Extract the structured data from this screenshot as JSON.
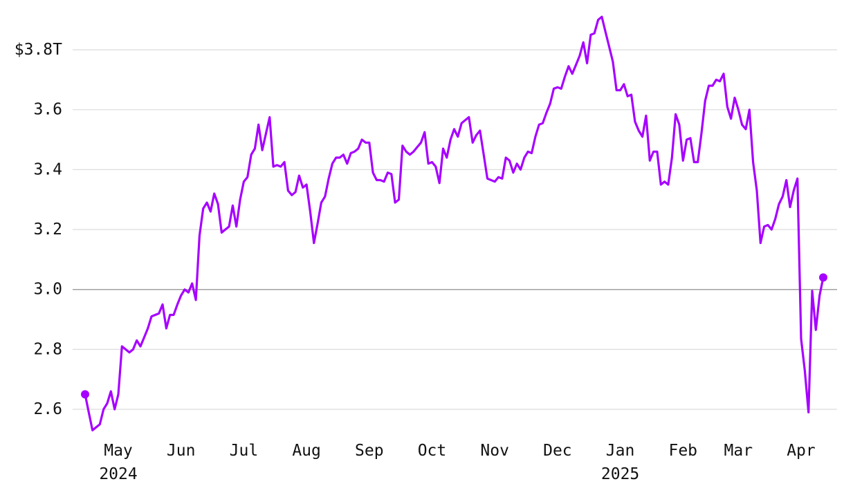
{
  "chart_data": {
    "type": "line",
    "categories": [
      null,
      null,
      null,
      null,
      null,
      null,
      null,
      null,
      null,
      "May\n2024",
      null,
      null,
      null,
      null,
      null,
      null,
      null,
      null,
      null,
      null,
      null,
      null,
      null,
      null,
      null,
      null,
      "Jun",
      null,
      null,
      null,
      null,
      null,
      null,
      null,
      null,
      null,
      null,
      null,
      null,
      null,
      null,
      null,
      null,
      "Jul",
      null,
      null,
      null,
      null,
      null,
      null,
      null,
      null,
      null,
      null,
      null,
      null,
      null,
      null,
      null,
      null,
      "Aug",
      null,
      null,
      null,
      null,
      null,
      null,
      null,
      null,
      null,
      null,
      null,
      null,
      null,
      null,
      null,
      null,
      "Sep",
      null,
      null,
      null,
      null,
      null,
      null,
      null,
      null,
      null,
      null,
      null,
      null,
      null,
      null,
      null,
      null,
      "Oct",
      null,
      null,
      null,
      null,
      null,
      null,
      null,
      null,
      null,
      null,
      null,
      null,
      null,
      null,
      null,
      null,
      "Nov",
      null,
      null,
      null,
      null,
      null,
      null,
      null,
      null,
      null,
      null,
      null,
      null,
      null,
      null,
      null,
      null,
      "Dec",
      null,
      null,
      null,
      null,
      null,
      null,
      null,
      null,
      null,
      null,
      null,
      null,
      null,
      null,
      null,
      null,
      "Jan\n2025",
      null,
      null,
      null,
      null,
      null,
      null,
      null,
      null,
      null,
      null,
      null,
      null,
      null,
      null,
      null,
      null,
      "Feb",
      null,
      null,
      null,
      null,
      null,
      null,
      null,
      null,
      null,
      null,
      null,
      null,
      null,
      null,
      "Mar",
      null,
      null,
      null,
      null,
      null,
      null,
      null,
      null,
      null,
      null,
      null,
      null,
      null,
      null,
      null,
      null,
      "Apr",
      null,
      null,
      null,
      null,
      null,
      null
    ],
    "values": [
      2.65,
      2.59,
      2.53,
      2.54,
      2.55,
      2.6,
      2.62,
      2.66,
      2.6,
      2.65,
      2.81,
      2.8,
      2.79,
      2.8,
      2.83,
      2.81,
      2.84,
      2.87,
      2.91,
      2.915,
      2.92,
      2.95,
      2.87,
      2.915,
      2.915,
      2.95,
      2.98,
      3.0,
      2.99,
      3.02,
      2.965,
      3.18,
      3.27,
      3.29,
      3.26,
      3.32,
      3.285,
      3.19,
      3.2,
      3.21,
      3.28,
      3.21,
      3.3,
      3.36,
      3.375,
      3.45,
      3.47,
      3.55,
      3.465,
      3.52,
      3.575,
      3.41,
      3.415,
      3.41,
      3.425,
      3.33,
      3.315,
      3.325,
      3.38,
      3.34,
      3.35,
      3.26,
      3.155,
      3.22,
      3.29,
      3.31,
      3.37,
      3.42,
      3.44,
      3.44,
      3.45,
      3.42,
      3.455,
      3.46,
      3.47,
      3.5,
      3.49,
      3.49,
      3.39,
      3.365,
      3.365,
      3.36,
      3.39,
      3.385,
      3.29,
      3.3,
      3.48,
      3.46,
      3.45,
      3.46,
      3.475,
      3.49,
      3.525,
      3.42,
      3.425,
      3.41,
      3.355,
      3.47,
      3.44,
      3.5,
      3.535,
      3.51,
      3.555,
      3.565,
      3.575,
      3.49,
      3.515,
      3.53,
      3.45,
      3.37,
      3.365,
      3.36,
      3.375,
      3.37,
      3.44,
      3.43,
      3.39,
      3.42,
      3.4,
      3.44,
      3.46,
      3.455,
      3.51,
      3.55,
      3.555,
      3.59,
      3.62,
      3.67,
      3.675,
      3.67,
      3.71,
      3.745,
      3.72,
      3.75,
      3.78,
      3.825,
      3.755,
      3.85,
      3.855,
      3.9,
      3.91,
      3.86,
      3.81,
      3.76,
      3.665,
      3.665,
      3.685,
      3.645,
      3.65,
      3.56,
      3.53,
      3.51,
      3.58,
      3.43,
      3.46,
      3.46,
      3.35,
      3.36,
      3.35,
      3.44,
      3.585,
      3.55,
      3.43,
      3.5,
      3.505,
      3.425,
      3.425,
      3.52,
      3.63,
      3.68,
      3.68,
      3.7,
      3.695,
      3.72,
      3.61,
      3.57,
      3.64,
      3.6,
      3.55,
      3.535,
      3.6,
      3.425,
      3.33,
      3.155,
      3.21,
      3.215,
      3.2,
      3.235,
      3.285,
      3.31,
      3.365,
      3.275,
      3.33,
      3.37,
      2.835,
      2.73,
      2.59,
      2.995,
      2.865,
      2.98,
      3.04
    ],
    "color": "#a600ff",
    "ylim": [
      2.52,
      3.92
    ],
    "yticks": [
      2.6,
      2.8,
      {
        "value": 3,
        "label": "3.0"
      },
      3.2,
      3.4,
      3.6,
      {
        "value": 3.8,
        "label": "$3.8T"
      }
    ],
    "reference_line": 3,
    "grid": true,
    "endpoint_markers": true
  }
}
